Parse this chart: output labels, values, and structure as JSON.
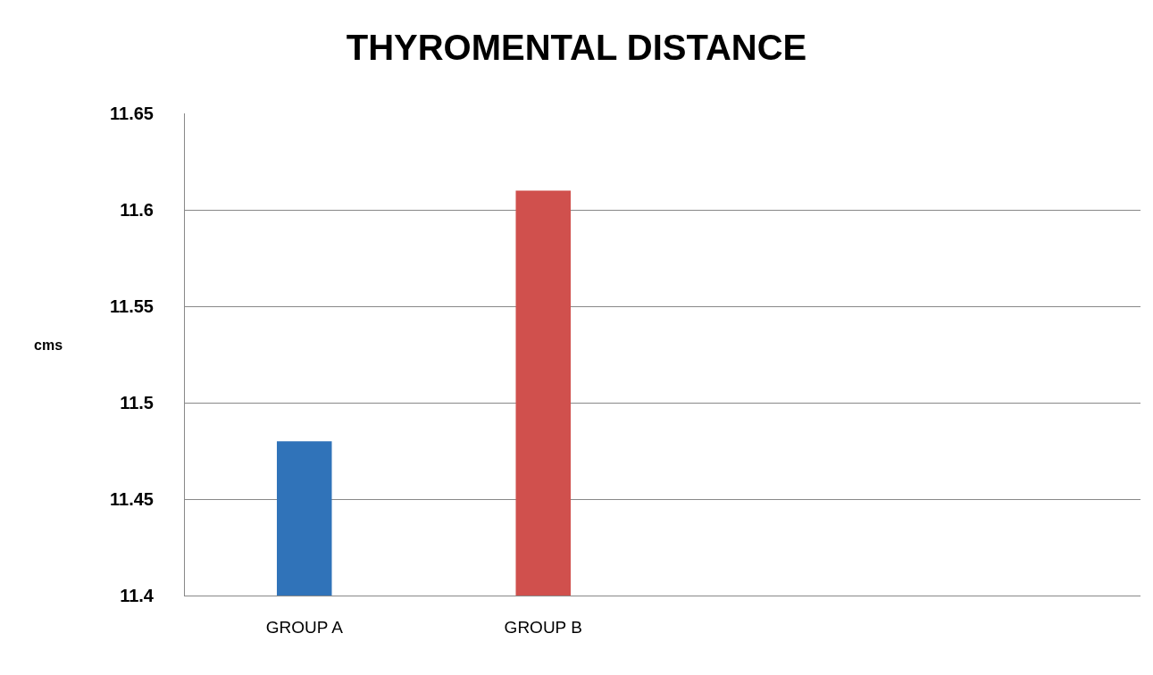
{
  "chart_data": {
    "type": "bar",
    "title": "THYROMENTAL DISTANCE",
    "ylabel": "cms",
    "categories": [
      "GROUP A",
      "GROUP B",
      null,
      null
    ],
    "values": [
      11.48,
      11.61,
      null,
      null
    ],
    "colors": [
      "#3073b9",
      "#d0504d",
      "#3073b9",
      "#d0504d"
    ],
    "ylim": [
      11.4,
      11.65
    ],
    "yticks": [
      11.4,
      11.45,
      11.5,
      11.55,
      11.6,
      11.65
    ],
    "grid": "y",
    "legend": false
  }
}
